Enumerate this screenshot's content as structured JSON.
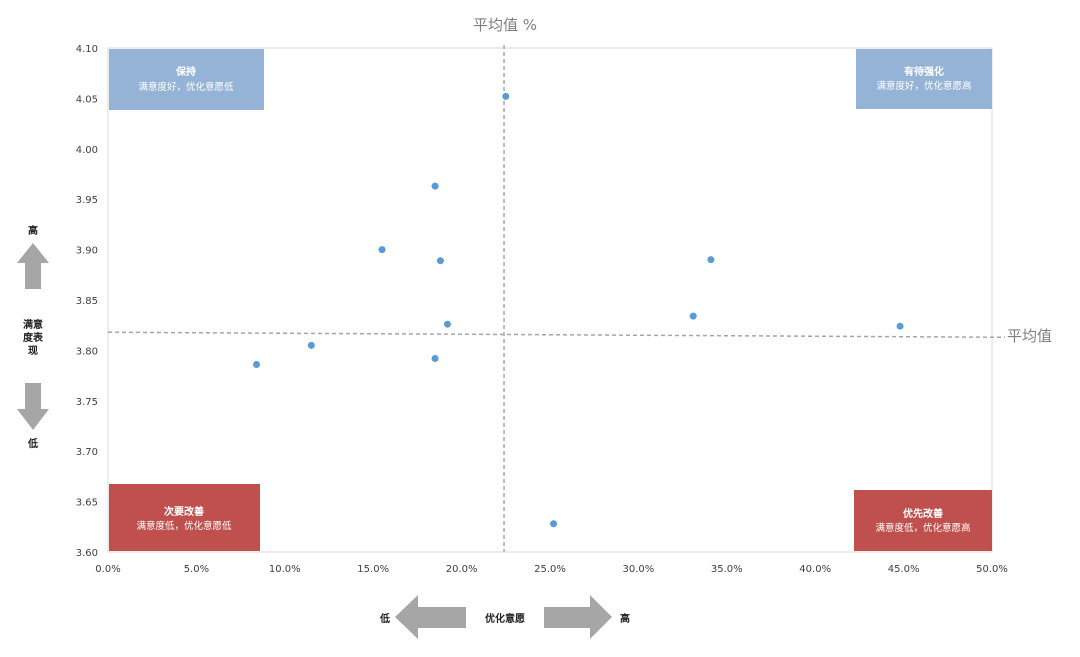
{
  "chart_data": {
    "type": "scatter",
    "title": "",
    "xlim": [
      0.0,
      0.5
    ],
    "ylim": [
      3.6,
      4.1
    ],
    "x_ticks": [
      0.0,
      0.05,
      0.1,
      0.15,
      0.2,
      0.25,
      0.3,
      0.35,
      0.4,
      0.45,
      0.5
    ],
    "x_tick_labels": [
      "0.0%",
      "5.0%",
      "10.0%",
      "15.0%",
      "20.0%",
      "25.0%",
      "30.0%",
      "35.0%",
      "40.0%",
      "45.0%",
      "50.0%"
    ],
    "y_ticks": [
      3.6,
      3.65,
      3.7,
      3.75,
      3.8,
      3.85,
      3.9,
      3.95,
      4.0,
      4.05,
      4.1
    ],
    "y_tick_labels": [
      "3.60",
      "3.65",
      "3.70",
      "3.75",
      "3.80",
      "3.85",
      "3.90",
      "3.95",
      "4.00",
      "4.05",
      "4.10"
    ],
    "grid": false,
    "point_color": "#5b9bd5",
    "points": [
      {
        "x": 0.225,
        "y": 4.052
      },
      {
        "x": 0.185,
        "y": 3.963
      },
      {
        "x": 0.155,
        "y": 3.9
      },
      {
        "x": 0.188,
        "y": 3.889
      },
      {
        "x": 0.341,
        "y": 3.89
      },
      {
        "x": 0.331,
        "y": 3.834
      },
      {
        "x": 0.448,
        "y": 3.824
      },
      {
        "x": 0.192,
        "y": 3.826
      },
      {
        "x": 0.115,
        "y": 3.805
      },
      {
        "x": 0.185,
        "y": 3.792
      },
      {
        "x": 0.084,
        "y": 3.786
      },
      {
        "x": 0.252,
        "y": 3.628
      }
    ],
    "reference_lines": {
      "vertical": {
        "x": 0.224,
        "label": "平均值 %"
      },
      "horizontal": {
        "y_left": 3.818,
        "y_right": 3.813,
        "label": "平均值"
      }
    },
    "quadrants": [
      {
        "id": "keep",
        "position": "top-left",
        "title": "保持",
        "subtitle": "满意度好，优化意愿低",
        "color": "#95b3d7"
      },
      {
        "id": "strengthen",
        "position": "top-right",
        "title": "有待强化",
        "subtitle": "满意度好，优化意愿高",
        "color": "#95b3d7"
      },
      {
        "id": "secondary",
        "position": "bottom-left",
        "title": "次要改善",
        "subtitle": "满意度低，优化意愿低",
        "color": "#c0504d"
      },
      {
        "id": "priority",
        "position": "bottom-right",
        "title": "优先改善",
        "subtitle": "满意度低，优化意愿高",
        "color": "#c0504d"
      }
    ],
    "y_axis_indicator": {
      "high": "高",
      "label_lines": [
        "满意",
        "度表",
        "现"
      ],
      "low": "低"
    },
    "x_axis_indicator": {
      "low": "低",
      "label": "优化意愿",
      "high": "高"
    },
    "arrow_color": "#a6a6a6"
  }
}
